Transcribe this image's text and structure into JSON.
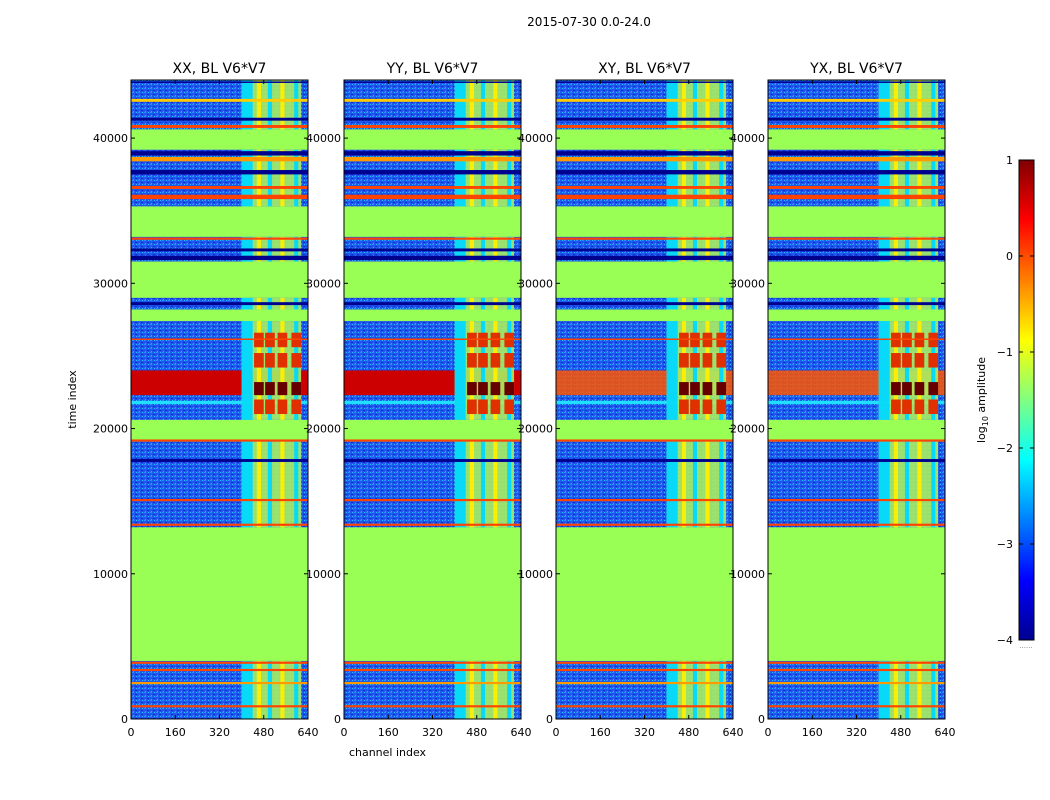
{
  "figure": {
    "title": "2015-07-30 0.0-24.0",
    "colorbar_label": "log10 amplitude",
    "colorbar_label_base": "log",
    "colorbar_label_sub": "10",
    "colorbar_label_rest": " amplitude",
    "colorbar_ticks": [
      "1",
      "0",
      "−1",
      "−2",
      "−3",
      "−4"
    ],
    "colorbar_range": [
      -4,
      1
    ],
    "colorbar_cmap": "jet",
    "colorbar_dots": "......"
  },
  "colors": {
    "background": "#99ff55",
    "noise": "#2060f0",
    "rfi_hot": "#cc0000",
    "rfi_line": "#ff4400"
  },
  "chart_data": [
    {
      "type": "heatmap",
      "title": "XX, BL V6*V7",
      "xlabel": "",
      "ylabel": "time index",
      "xlim": [
        0,
        640
      ],
      "ylim": [
        0,
        44000
      ],
      "x_ticks": [
        "0",
        "160",
        "320",
        "480",
        "640"
      ],
      "y_ticks": [
        "0",
        "10000",
        "20000",
        "30000",
        "40000"
      ]
    },
    {
      "type": "heatmap",
      "title": "YY, BL V6*V7",
      "xlabel": "channel index",
      "ylabel": "",
      "xlim": [
        0,
        640
      ],
      "ylim": [
        0,
        44000
      ],
      "x_ticks": [
        "0",
        "160",
        "320",
        "480",
        "640"
      ],
      "y_ticks": [
        "0",
        "10000",
        "20000",
        "30000",
        "40000"
      ]
    },
    {
      "type": "heatmap",
      "title": "XY, BL V6*V7",
      "xlabel": "",
      "ylabel": "",
      "xlim": [
        0,
        640
      ],
      "ylim": [
        0,
        44000
      ],
      "x_ticks": [
        "0",
        "160",
        "320",
        "480",
        "640"
      ],
      "y_ticks": [
        "0",
        "10000",
        "20000",
        "30000",
        "40000"
      ]
    },
    {
      "type": "heatmap",
      "title": "YX, BL V6*V7",
      "xlabel": "",
      "ylabel": "",
      "xlim": [
        0,
        640
      ],
      "ylim": [
        0,
        44000
      ],
      "x_ticks": [
        "0",
        "160",
        "320",
        "480",
        "640"
      ],
      "y_ticks": [
        "0",
        "10000",
        "20000",
        "30000",
        "40000"
      ]
    }
  ]
}
